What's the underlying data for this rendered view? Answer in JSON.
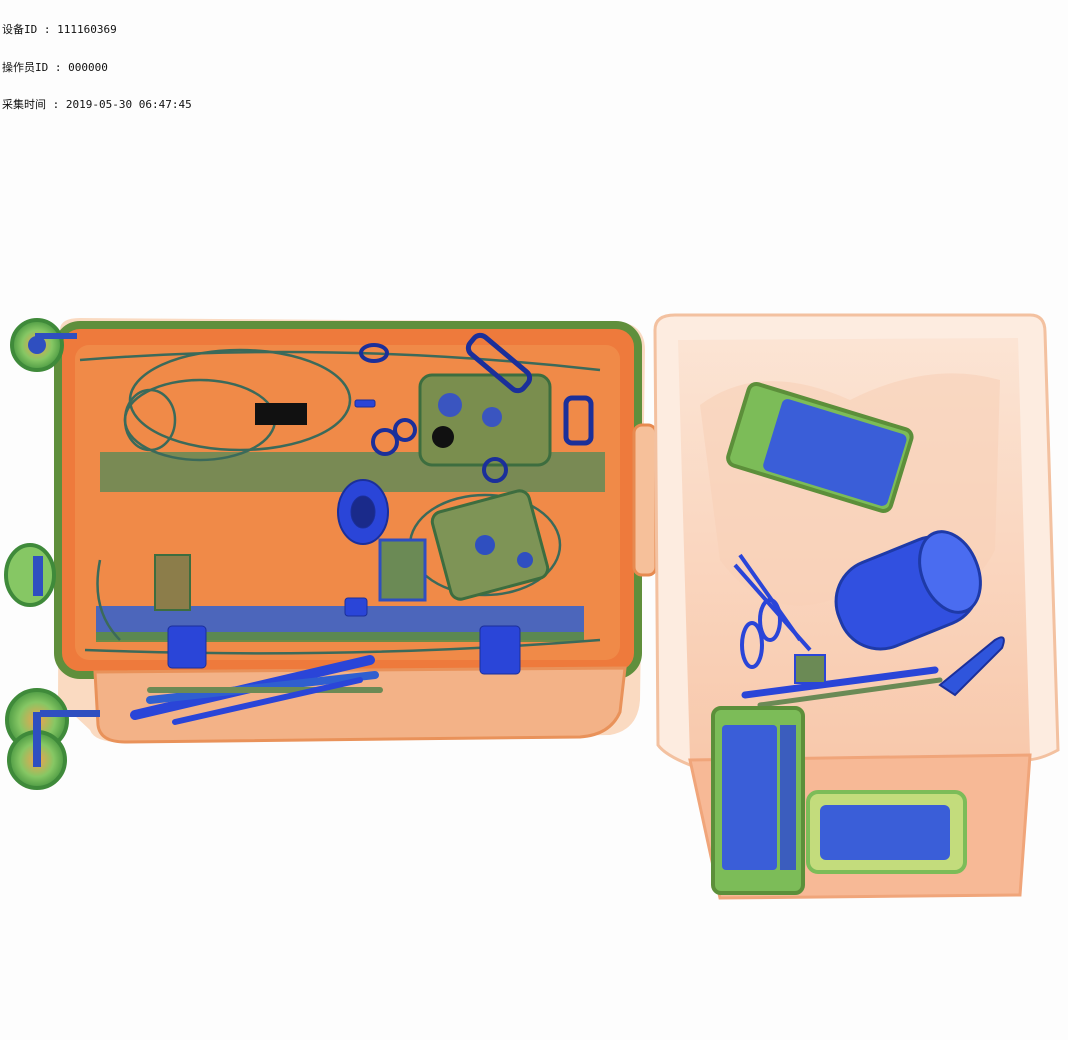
{
  "scan_header": {
    "device_line": "设备ID : 111160369",
    "operator_line": "操作员ID : 000000",
    "time_line": "采集时间 : 2019-05-30 06:47:45"
  },
  "scan_image": {
    "background": "#fdfdfd",
    "palette": {
      "organic_orange": "#f07a3a",
      "organic_light": "#f8c9a8",
      "mixed_green": "#6fa45a",
      "metal_blue": "#2a45d8",
      "green_light": "#7ccf7a"
    },
    "objects": [
      "suitcase",
      "luggage-wheels",
      "telescopic-handle",
      "pens",
      "smartphone-1",
      "smartphone-2",
      "smartphone-3",
      "power-bank",
      "thermos-bottle",
      "scissors",
      "keys",
      "plastic-tray"
    ]
  }
}
